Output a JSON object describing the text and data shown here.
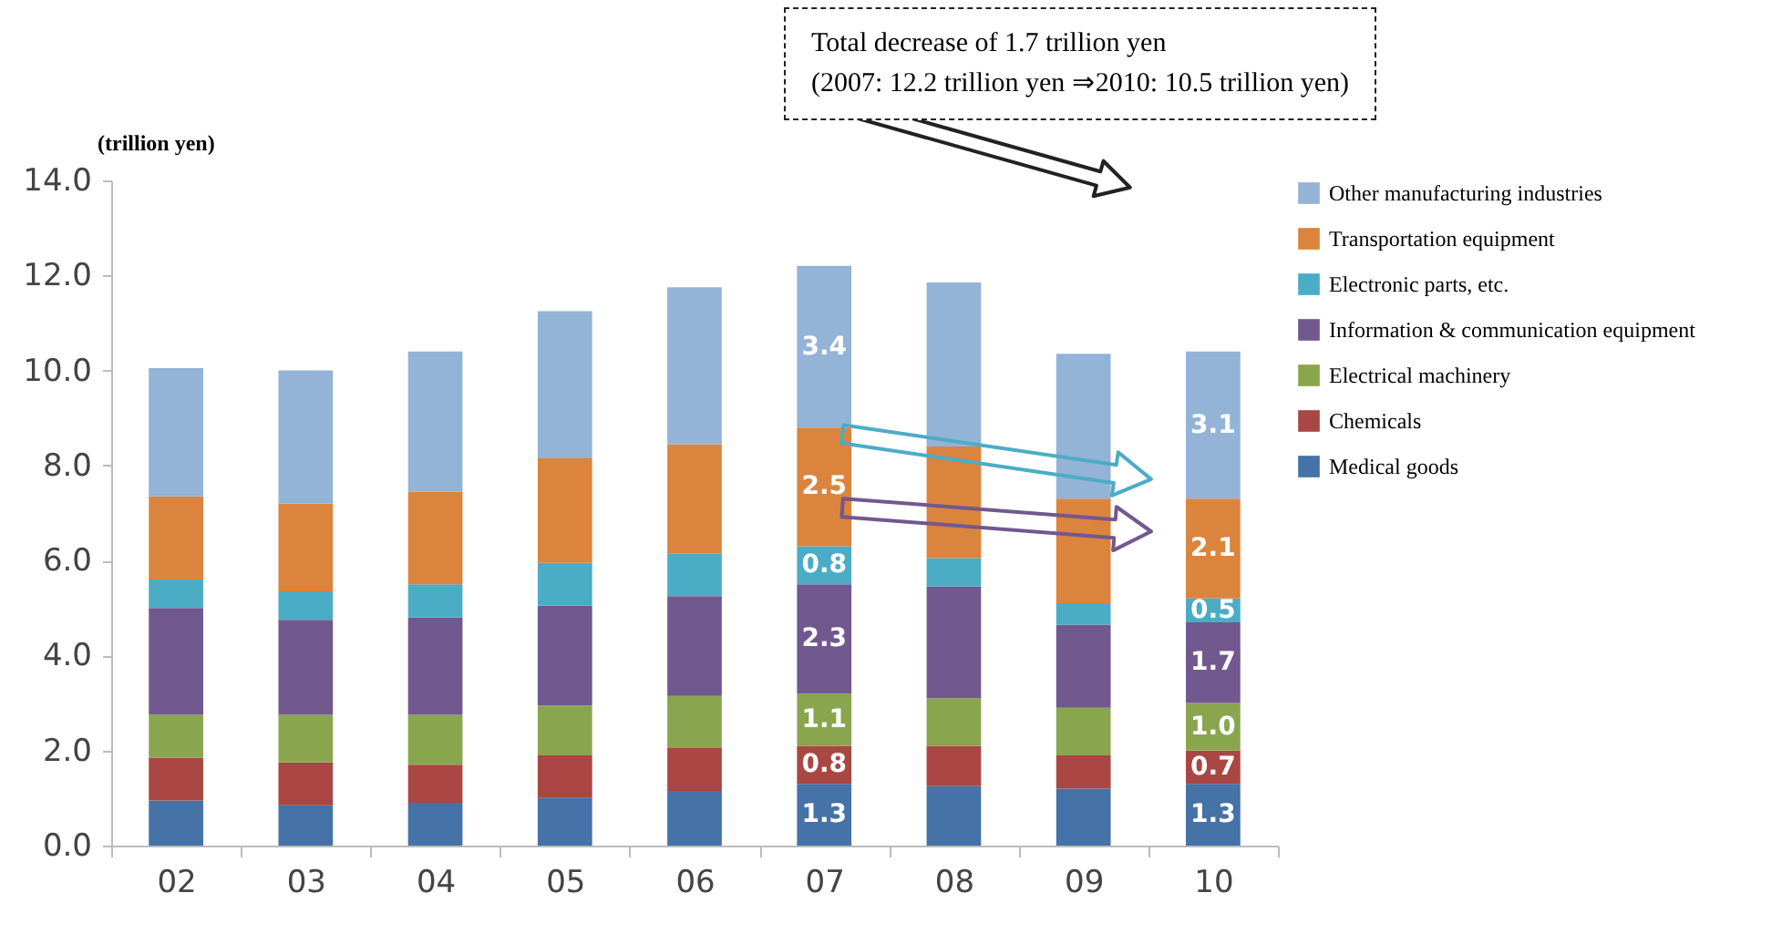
{
  "chart_data": {
    "type": "bar",
    "stacked": true,
    "ylabel": "(trillion yen)",
    "categories": [
      "02",
      "03",
      "04",
      "05",
      "06",
      "07",
      "08",
      "09",
      "10"
    ],
    "series": [
      {
        "name": "Medical goods",
        "color": "#4572a7",
        "values": [
          0.95,
          0.85,
          0.9,
          1.0,
          1.15,
          1.3,
          1.25,
          1.2,
          1.3
        ],
        "value_labels": [
          null,
          null,
          null,
          null,
          null,
          "1.3",
          null,
          null,
          "1.3"
        ]
      },
      {
        "name": "Chemicals",
        "color": "#aa4643",
        "values": [
          0.9,
          0.9,
          0.8,
          0.9,
          0.9,
          0.8,
          0.85,
          0.7,
          0.7
        ],
        "value_labels": [
          null,
          null,
          null,
          null,
          null,
          "0.8",
          null,
          null,
          "0.7"
        ]
      },
      {
        "name": "Electrical machinery",
        "color": "#89a54e",
        "values": [
          0.9,
          1.0,
          1.05,
          1.05,
          1.1,
          1.1,
          1.0,
          1.0,
          1.0
        ],
        "value_labels": [
          null,
          null,
          null,
          null,
          null,
          "1.1",
          null,
          null,
          "1.0"
        ]
      },
      {
        "name": "Information & communication equipment",
        "color": "#71588f",
        "values": [
          2.25,
          2.0,
          2.05,
          2.1,
          2.1,
          2.3,
          2.35,
          1.75,
          1.7
        ],
        "value_labels": [
          null,
          null,
          null,
          null,
          null,
          "2.3",
          null,
          null,
          "1.7"
        ]
      },
      {
        "name": "Electronic parts, etc.",
        "color": "#4bacc6",
        "values": [
          0.6,
          0.6,
          0.7,
          0.9,
          0.9,
          0.8,
          0.6,
          0.45,
          0.5
        ],
        "value_labels": [
          null,
          null,
          null,
          null,
          null,
          "0.8",
          null,
          null,
          "0.5"
        ]
      },
      {
        "name": "Transportation equipment",
        "color": "#db843d",
        "values": [
          1.75,
          1.85,
          1.95,
          2.2,
          2.3,
          2.5,
          2.35,
          2.2,
          2.1
        ],
        "value_labels": [
          null,
          null,
          null,
          null,
          null,
          "2.5",
          null,
          null,
          "2.1"
        ]
      },
      {
        "name": "Other manufacturing industries",
        "color": "#93b3d7",
        "values": [
          2.7,
          2.8,
          2.95,
          3.1,
          3.3,
          3.4,
          3.45,
          3.05,
          3.1
        ],
        "value_labels": [
          null,
          null,
          null,
          null,
          null,
          "3.4",
          null,
          null,
          "3.1"
        ]
      }
    ],
    "ylim": [
      0,
      14
    ],
    "yticks": [
      {
        "value": 0,
        "label": "0.0"
      },
      {
        "value": 2,
        "label": "2.0"
      },
      {
        "value": 4,
        "label": "4.0"
      },
      {
        "value": 6,
        "label": "6.0"
      },
      {
        "value": 8,
        "label": "8.0"
      },
      {
        "value": 10,
        "label": "10.0"
      },
      {
        "value": 12,
        "label": "12.0"
      },
      {
        "value": 14,
        "label": "14.0"
      }
    ],
    "grid": false,
    "legend": "right",
    "annotations": [
      "Total decrease of 1.7 trillion yen\n(2007: 12.2 trillion yen ⇒2010: 10.5 trillion yen)"
    ]
  }
}
